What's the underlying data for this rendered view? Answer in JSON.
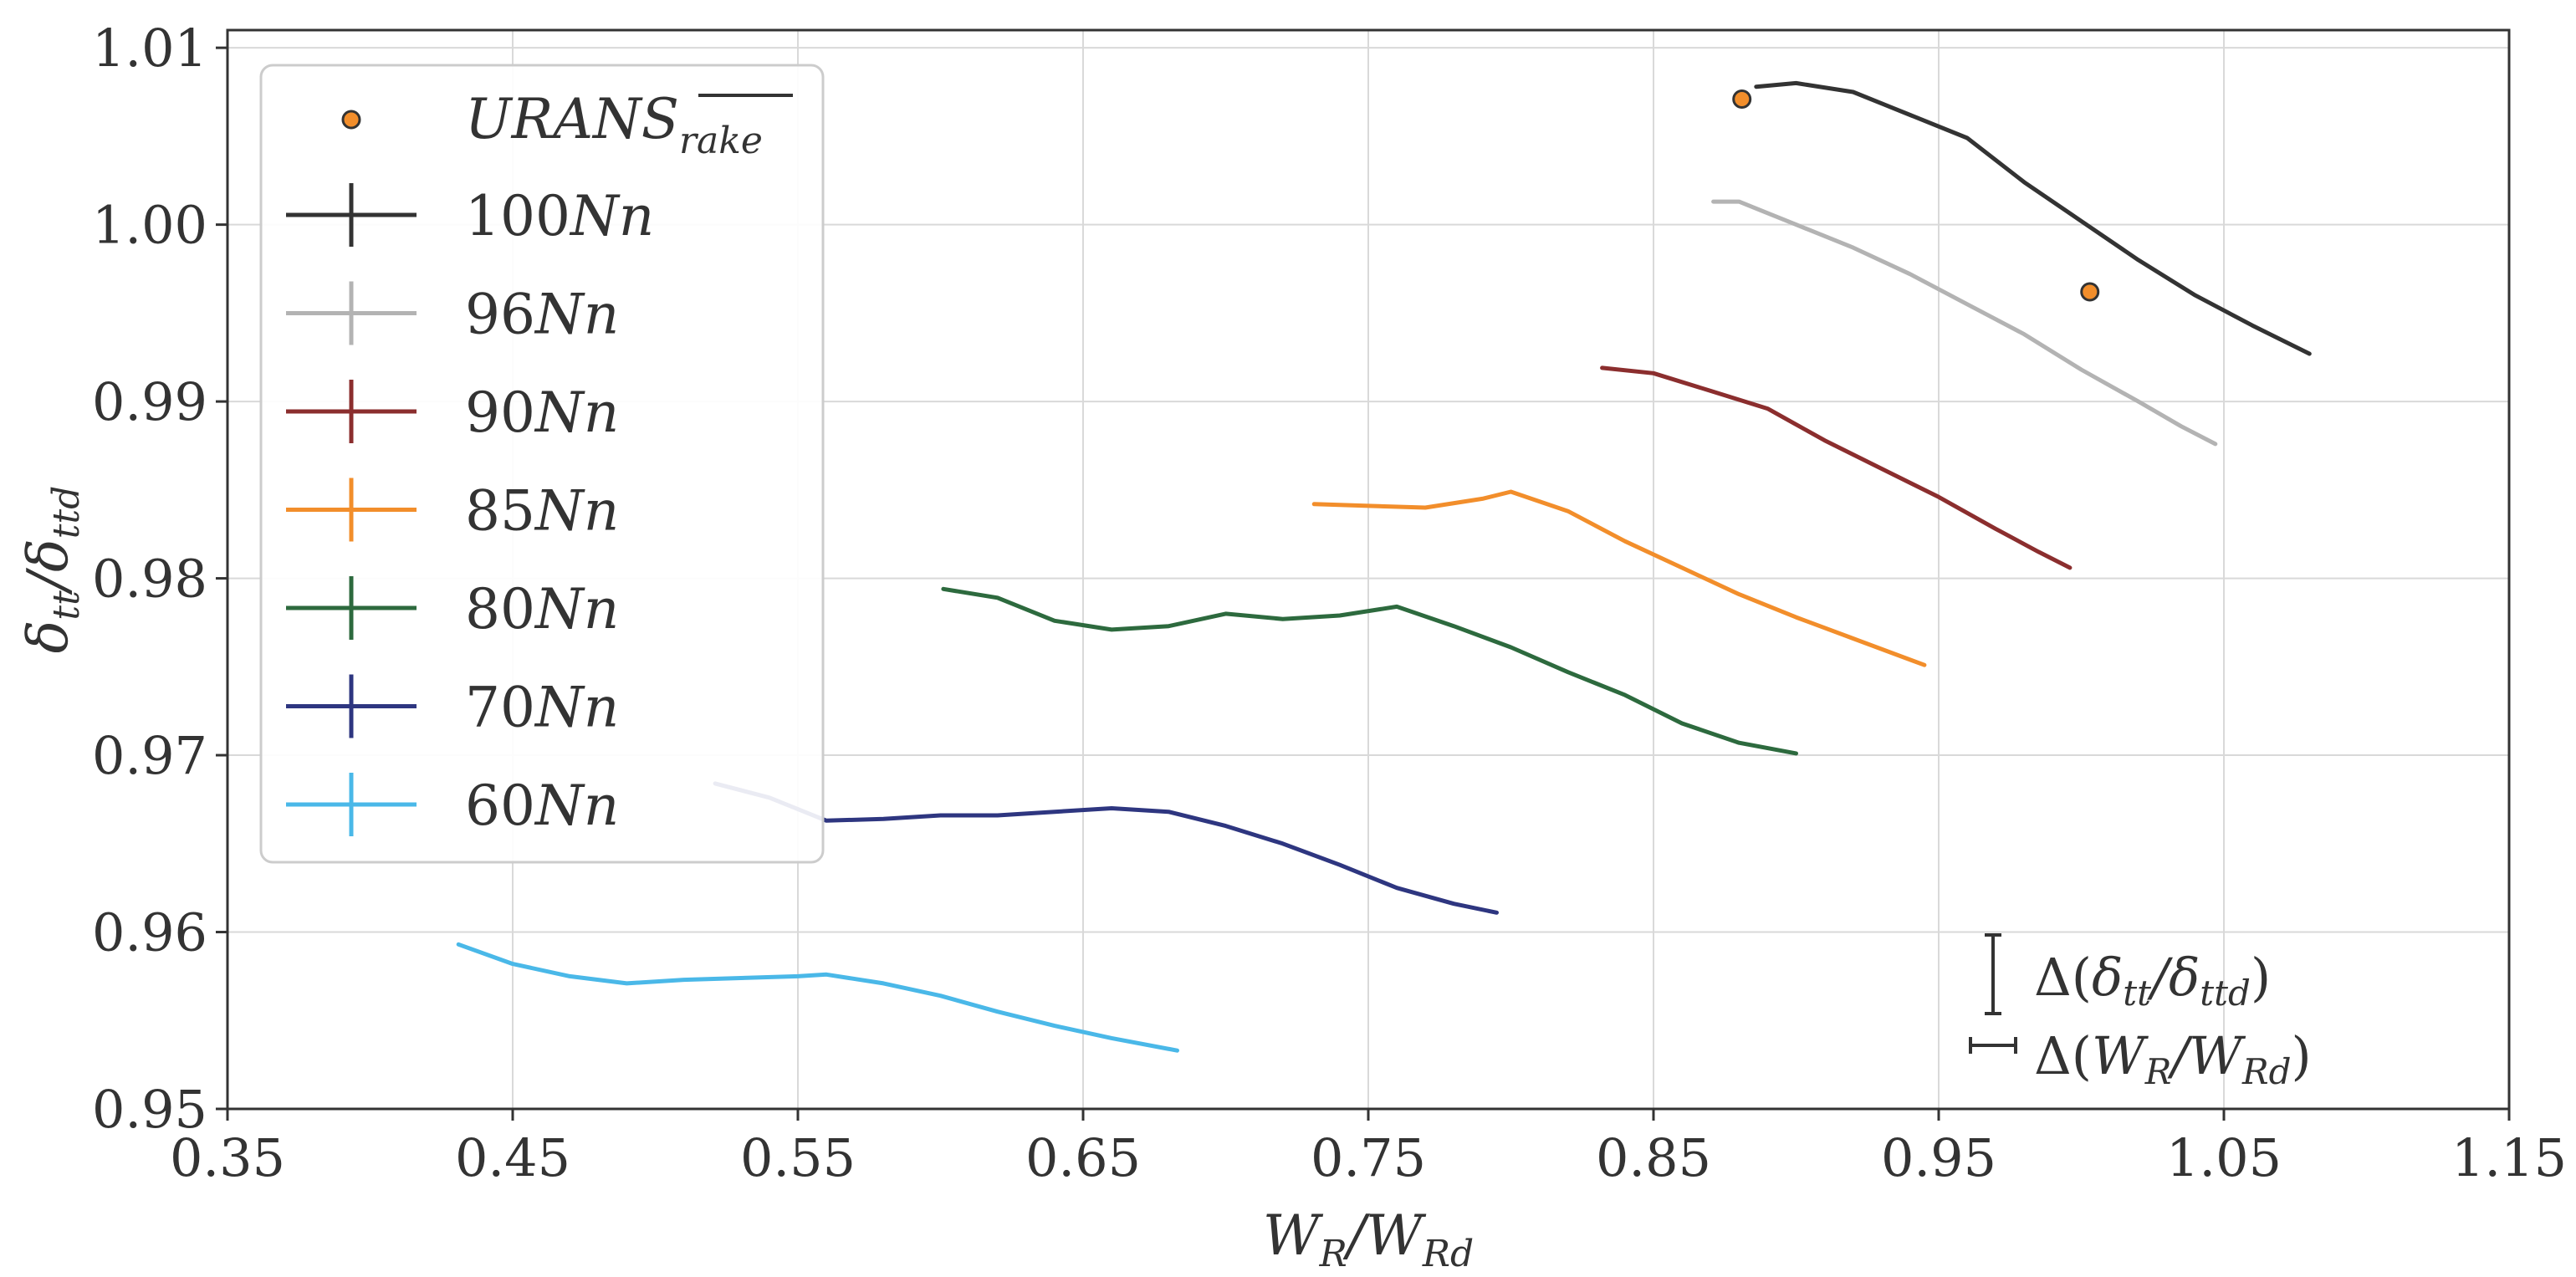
{
  "chart_data": {
    "type": "line",
    "title": "",
    "xlabel": "W_R/W_Rd",
    "ylabel": "δ_tt/δ_ttd",
    "xlim": [
      0.35,
      1.15
    ],
    "ylim": [
      0.95,
      1.011
    ],
    "grid": true,
    "legend_position": "top-left",
    "x_ticks": [
      0.35,
      0.45,
      0.55,
      0.65,
      0.75,
      0.85,
      0.95,
      1.05,
      1.15
    ],
    "x_tick_labels": [
      "0.35",
      "0.45",
      "0.55",
      "0.65",
      "0.75",
      "0.85",
      "0.95",
      "1.05",
      "1.15"
    ],
    "y_ticks": [
      0.95,
      0.96,
      0.97,
      0.98,
      0.99,
      1.0,
      1.01
    ],
    "y_tick_labels": [
      "0.95",
      "0.96",
      "0.97",
      "0.98",
      "0.99",
      "1.00",
      "1.01"
    ],
    "scatter": {
      "name": "URANS_rake",
      "label_main": "URANS",
      "label_sub": "rake",
      "color": "#f28e2b",
      "points": [
        {
          "x": 0.881,
          "y": 1.0071
        },
        {
          "x": 1.003,
          "y": 0.9962
        }
      ]
    },
    "series": [
      {
        "name": "100Nn",
        "label_num": "100",
        "label_unit": "Nn",
        "color": "#333333",
        "x": [
          0.886,
          0.9,
          0.92,
          0.94,
          0.96,
          0.98,
          1.0,
          1.02,
          1.04,
          1.06,
          1.08
        ],
        "y": [
          1.0078,
          1.008,
          1.0075,
          1.0062,
          1.0049,
          1.0024,
          1.0002,
          0.998,
          0.996,
          0.9943,
          0.9927
        ]
      },
      {
        "name": "96Nn",
        "label_num": "96",
        "label_unit": "Nn",
        "color": "#b3b3b3",
        "x": [
          0.871,
          0.88,
          0.9,
          0.92,
          0.94,
          0.96,
          0.98,
          1.0,
          1.02,
          1.035,
          1.047
        ],
        "y": [
          1.0013,
          1.0013,
          1.0,
          0.9987,
          0.9972,
          0.9955,
          0.9938,
          0.9918,
          0.99,
          0.9886,
          0.9876
        ]
      },
      {
        "name": "90Nn",
        "label_num": "90",
        "label_unit": "Nn",
        "color": "#8b2e2e",
        "x": [
          0.832,
          0.85,
          0.87,
          0.89,
          0.91,
          0.93,
          0.95,
          0.97,
          0.985,
          0.996
        ],
        "y": [
          0.9919,
          0.9916,
          0.9906,
          0.9896,
          0.9878,
          0.9862,
          0.9846,
          0.9828,
          0.9815,
          0.9806
        ]
      },
      {
        "name": "85Nn",
        "label_num": "85",
        "label_unit": "Nn",
        "color": "#f28e2b",
        "x": [
          0.731,
          0.75,
          0.77,
          0.79,
          0.8,
          0.82,
          0.84,
          0.86,
          0.88,
          0.9,
          0.92,
          0.945
        ],
        "y": [
          0.9842,
          0.9841,
          0.984,
          0.9845,
          0.9849,
          0.9838,
          0.9821,
          0.9806,
          0.9791,
          0.9778,
          0.9766,
          0.9751
        ]
      },
      {
        "name": "80Nn",
        "label_num": "80",
        "label_unit": "Nn",
        "color": "#2d6a3e",
        "x": [
          0.601,
          0.62,
          0.64,
          0.66,
          0.68,
          0.7,
          0.72,
          0.74,
          0.76,
          0.78,
          0.8,
          0.82,
          0.84,
          0.86,
          0.88,
          0.9
        ],
        "y": [
          0.9794,
          0.9789,
          0.9776,
          0.9771,
          0.9773,
          0.978,
          0.9777,
          0.9779,
          0.9784,
          0.9773,
          0.9761,
          0.9747,
          0.9734,
          0.9718,
          0.9707,
          0.9701
        ]
      },
      {
        "name": "70Nn",
        "label_num": "70",
        "label_unit": "Nn",
        "color": "#2e3680",
        "x": [
          0.521,
          0.54,
          0.56,
          0.58,
          0.6,
          0.62,
          0.64,
          0.66,
          0.68,
          0.7,
          0.72,
          0.74,
          0.76,
          0.78,
          0.795
        ],
        "y": [
          0.9684,
          0.9676,
          0.9663,
          0.9664,
          0.9666,
          0.9666,
          0.9668,
          0.967,
          0.9668,
          0.966,
          0.965,
          0.9638,
          0.9625,
          0.9616,
          0.9611
        ]
      },
      {
        "name": "60Nn",
        "label_num": "60",
        "label_unit": "Nn",
        "color": "#4ab8e8",
        "x": [
          0.431,
          0.45,
          0.47,
          0.49,
          0.51,
          0.53,
          0.55,
          0.56,
          0.58,
          0.6,
          0.62,
          0.64,
          0.66,
          0.683
        ],
        "y": [
          0.9593,
          0.9582,
          0.9575,
          0.9571,
          0.9573,
          0.9574,
          0.9575,
          0.9576,
          0.9571,
          0.9564,
          0.9555,
          0.9547,
          0.954,
          0.9533
        ]
      }
    ],
    "annotations": [
      {
        "symbol": "vertical-errorbar",
        "text": "Δ(δ_tt/δ_ttd)",
        "x": 0.97,
        "y": 0.9578
      },
      {
        "symbol": "horizontal-errorbar",
        "text": "Δ(W_R/W_Rd)",
        "x": 0.97,
        "y": 0.9535
      }
    ]
  }
}
